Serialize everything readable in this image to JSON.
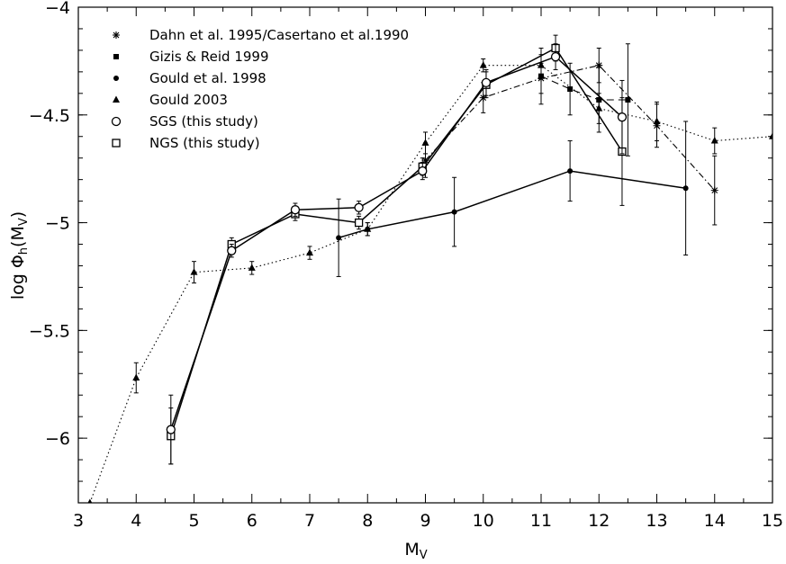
{
  "chart_data": {
    "type": "line",
    "xlabel_main": "M",
    "xlabel_sub": "V",
    "ylabel_prefix": "log Φ",
    "ylabel_sub": "h",
    "ylabel_paren": "(M",
    "ylabel_paren_sub": "V",
    "ylabel_close": ")",
    "xlim": [
      3,
      15
    ],
    "ylim": [
      -6.3,
      -4
    ],
    "x_ticks": [
      3,
      4,
      5,
      6,
      7,
      8,
      9,
      10,
      11,
      12,
      13,
      14,
      15
    ],
    "x_tick_labels": [
      "3",
      "4",
      "5",
      "6",
      "7",
      "8",
      "9",
      "10",
      "11",
      "12",
      "13",
      "14",
      "15"
    ],
    "y_ticks": [
      -4,
      -4.5,
      -5,
      -5.5,
      -6
    ],
    "y_tick_labels": [
      "−4",
      "−4.5",
      "−5",
      "−5.5",
      "−6"
    ],
    "grid": false,
    "legend_placement": "top-left",
    "series": [
      {
        "name": "Dahn et al. 1995/Casertano et al.1990",
        "marker": "star",
        "line": "dashdot",
        "x": [
          9.0,
          10.0,
          11.0,
          12.0,
          13.0,
          14.0
        ],
        "y": [
          -4.71,
          -4.42,
          -4.33,
          -4.27,
          -4.55,
          -4.85
        ],
        "err": [
          0.08,
          0.07,
          0.07,
          0.08,
          0.1,
          0.16
        ]
      },
      {
        "name": "Gizis & Reid 1999",
        "marker": "square-filled",
        "line": "dashed",
        "x": [
          11.0,
          11.5,
          12.0,
          12.5
        ],
        "y": [
          -4.32,
          -4.38,
          -4.43,
          -4.43
        ],
        "err": [
          0.13,
          0.12,
          0.15,
          0.26
        ]
      },
      {
        "name": "Gould et al. 1998",
        "marker": "circle-filled",
        "line": "solid",
        "x": [
          7.5,
          8.0,
          9.5,
          11.5,
          13.5
        ],
        "y": [
          -5.07,
          -5.03,
          -4.95,
          -4.76,
          -4.84
        ],
        "err": [
          0.18,
          0.03,
          0.16,
          0.14,
          0.31
        ]
      },
      {
        "name": "Gould 2003",
        "marker": "triangle-filled",
        "line": "dotted",
        "x": [
          3.2,
          4.0,
          5.0,
          6.0,
          7.0,
          8.0,
          9.0,
          10.0,
          11.0,
          12.0,
          13.0,
          14.0,
          15.0
        ],
        "y": [
          -6.3,
          -5.72,
          -5.23,
          -5.21,
          -5.14,
          -5.03,
          -4.63,
          -4.27,
          -4.27,
          -4.47,
          -4.53,
          -4.62,
          -4.6
        ],
        "err": [
          0,
          0.07,
          0.05,
          0.03,
          0.03,
          0.03,
          0.05,
          0.03,
          0.05,
          0.07,
          0.09,
          0.06,
          0
        ]
      },
      {
        "name": "SGS (this study)",
        "marker": "circle-open",
        "line": "solid",
        "x": [
          4.6,
          5.65,
          6.75,
          7.85,
          8.95,
          10.05,
          11.25,
          12.4
        ],
        "y": [
          -5.96,
          -5.13,
          -4.94,
          -4.93,
          -4.76,
          -4.35,
          -4.23,
          -4.51
        ],
        "err": [
          0.16,
          0.03,
          0.03,
          0.03,
          0.04,
          0.06,
          0.06,
          0.17
        ]
      },
      {
        "name": "NGS (this study)",
        "marker": "square-open",
        "line": "solid",
        "x": [
          4.6,
          5.65,
          6.75,
          7.85,
          8.95,
          10.05,
          11.25,
          12.4
        ],
        "y": [
          -5.99,
          -5.1,
          -4.96,
          -5.0,
          -4.74,
          -4.36,
          -4.19,
          -4.67
        ],
        "err": [
          0.13,
          0.03,
          0.03,
          0.03,
          0.04,
          0.06,
          0.06,
          0.25
        ]
      }
    ]
  }
}
